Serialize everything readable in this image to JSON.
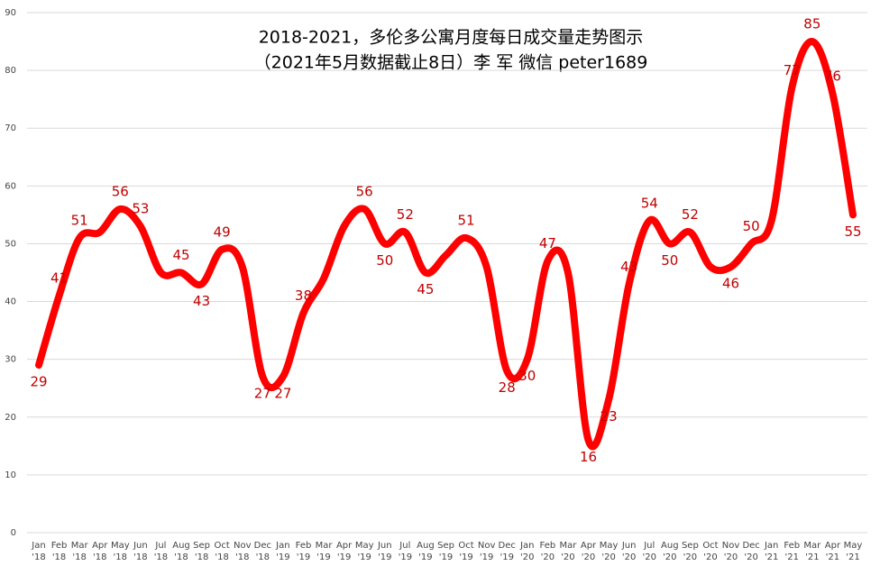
{
  "chart_data": {
    "type": "line",
    "title": "2018-2021，多伦多公寓月度每日成交量走势图示",
    "subtitle": "（2021年5月数据截止8日）李 军 微信 peter1689",
    "categories": [
      "Jan\n'18",
      "Feb\n'18",
      "Mar\n'18",
      "Apr\n'18",
      "May\n'18",
      "Jun\n'18",
      "Jul\n'18",
      "Aug\n'18",
      "Sep\n'18",
      "Oct\n'18",
      "Nov\n'18",
      "Dec\n'18",
      "Jan\n'19",
      "Feb\n'19",
      "Mar\n'19",
      "Apr\n'19",
      "May\n'19",
      "Jun\n'19",
      "Jul\n'19",
      "Aug\n'19",
      "Sep\n'19",
      "Oct\n'19",
      "Nov\n'19",
      "Dec\n'19",
      "Jan\n'20",
      "Feb\n'20",
      "Mar\n'20",
      "Apr\n'20",
      "May\n'20",
      "Jun\n'20",
      "Jul\n'20",
      "Aug\n'20",
      "Sep\n'20",
      "Oct\n'20",
      "Nov\n'20",
      "Dec\n'20",
      "Jan\n'21",
      "Feb\n'21",
      "Mar\n'21",
      "Apr\n'21",
      "May\n'21"
    ],
    "series": [
      {
        "name": "成交量",
        "color": "#ff0000",
        "values": [
          29,
          41,
          51,
          52,
          56,
          53,
          45,
          45,
          43,
          49,
          46,
          27,
          27,
          38,
          44,
          53,
          56,
          50,
          52,
          45,
          48,
          51,
          46,
          28,
          30,
          47,
          45,
          16,
          23,
          43,
          54,
          50,
          52,
          46,
          46,
          50,
          54,
          77,
          85,
          76,
          55
        ],
        "value_labels": [
          "29",
          "41",
          "51",
          null,
          "56",
          "53",
          null,
          "45",
          "43",
          "49",
          null,
          "27",
          "27",
          "38",
          null,
          null,
          "56",
          "50",
          "52",
          "45",
          null,
          "51",
          null,
          "28",
          "30",
          "47",
          null,
          "16",
          "23",
          "43",
          "54",
          "50",
          "52",
          null,
          "46",
          "50",
          null,
          "77",
          "85",
          "76",
          "55"
        ]
      }
    ],
    "ylim": [
      0,
      90
    ],
    "yticks": [
      0,
      10,
      20,
      30,
      40,
      50,
      60,
      70,
      80,
      90
    ],
    "grid": true
  }
}
